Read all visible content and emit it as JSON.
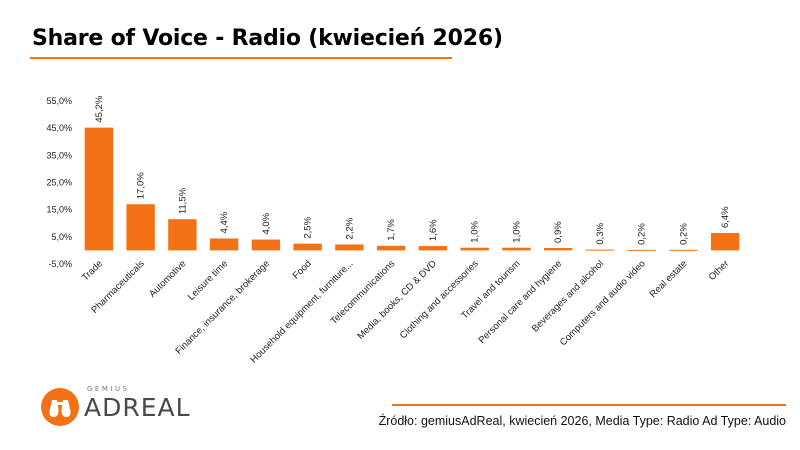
{
  "page": {
    "title": "Share of Voice - Radio (kwiecień 2026)",
    "source": "Źródło: gemiusAdReal, kwiecień 2026, Media Type: Radio Ad Type: Audio"
  },
  "logo": {
    "sub": "GEMIUS",
    "main": "ADREAL"
  },
  "colors": {
    "accent": "#f47216",
    "bar": "#f47216",
    "text": "#000000"
  },
  "chart_data": {
    "type": "bar",
    "categories": [
      "Trade",
      "Pharmaceuticals",
      "Automotive",
      "Leisure time",
      "Finance, insurance, brokerage",
      "Food",
      "Household equipment, furniture...",
      "Telecommunications",
      "Media, books, CD & DVD",
      "Clothing and accessories",
      "Travel and tourism",
      "Personal care and hygiene",
      "Beverages and alcohol",
      "Computers and audio video",
      "Real estate",
      "Other"
    ],
    "values": [
      45.2,
      17.0,
      11.5,
      4.4,
      4.0,
      2.5,
      2.2,
      1.7,
      1.6,
      1.0,
      1.0,
      0.9,
      0.3,
      0.2,
      0.2,
      6.4
    ],
    "data_labels": [
      "45,2%",
      "17,0%",
      "11,5%",
      "4,4%",
      "4,0%",
      "2,5%",
      "2,2%",
      "1,7%",
      "1,6%",
      "1,0%",
      "1,0%",
      "0,9%",
      "0,3%",
      "0,2%",
      "0,2%",
      "6,4%"
    ],
    "y_ticks": [
      -5,
      5,
      15,
      25,
      35,
      45,
      55
    ],
    "y_tick_labels": [
      "-5,0%",
      "5,0%",
      "15,0%",
      "25,0%",
      "35,0%",
      "45,0%",
      "55,0%"
    ],
    "ylim": [
      -5,
      55
    ],
    "grid": false,
    "legend": "none"
  }
}
